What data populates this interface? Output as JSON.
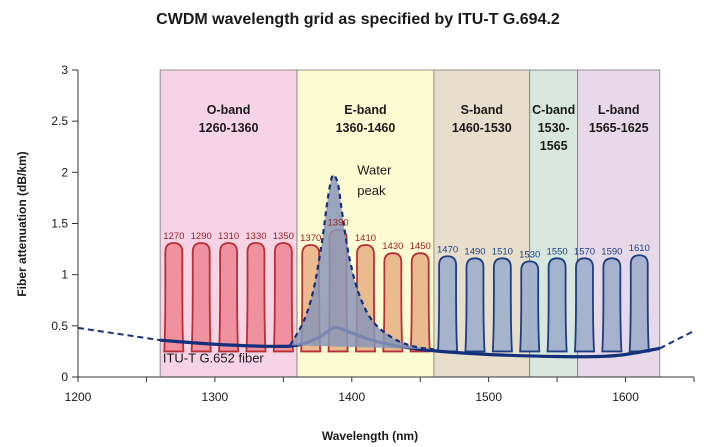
{
  "chart_data": {
    "type": "line",
    "title": "CWDM wavelength grid as specified by ITU-T G.694.2",
    "xlabel": "Wavelength (nm)",
    "ylabel": "Fiber attenuation (dB/km)",
    "xlim": [
      1200,
      1650
    ],
    "ylim": [
      0,
      3
    ],
    "xticks": [
      1200,
      1300,
      1400,
      1500,
      1600
    ],
    "yticks": [
      0,
      0.5,
      1,
      1.5,
      2,
      2.5,
      3
    ],
    "grid": false,
    "bands": [
      {
        "name": "O-band",
        "range_label": "1260-1360",
        "start": 1260,
        "end": 1360,
        "color": "#f7d3e6"
      },
      {
        "name": "E-band",
        "range_label": "1360-1460",
        "start": 1360,
        "end": 1460,
        "color": "#fdfbd2"
      },
      {
        "name": "S-band",
        "range_label": "1460-1530",
        "start": 1460,
        "end": 1530,
        "color": "#e7dfcc"
      },
      {
        "name": "C-band",
        "range_label": "1530-1565",
        "start": 1530,
        "end": 1565,
        "color": "#d7e7dd"
      },
      {
        "name": "L-band",
        "range_label": "1565-1625",
        "start": 1565,
        "end": 1625,
        "color": "#e8d9e8"
      }
    ],
    "channels": [
      {
        "label": "1270",
        "center": 1270,
        "peak": 1.3,
        "group": "O"
      },
      {
        "label": "1290",
        "center": 1290,
        "peak": 1.3,
        "group": "O"
      },
      {
        "label": "1310",
        "center": 1310,
        "peak": 1.3,
        "group": "O"
      },
      {
        "label": "1330",
        "center": 1330,
        "peak": 1.3,
        "group": "O"
      },
      {
        "label": "1350",
        "center": 1350,
        "peak": 1.3,
        "group": "O"
      },
      {
        "label": "1370",
        "center": 1370,
        "peak": 1.28,
        "group": "E"
      },
      {
        "label": "1390",
        "center": 1390,
        "peak": 1.43,
        "group": "E"
      },
      {
        "label": "1410",
        "center": 1410,
        "peak": 1.28,
        "group": "E"
      },
      {
        "label": "1430",
        "center": 1430,
        "peak": 1.2,
        "group": "E"
      },
      {
        "label": "1450",
        "center": 1450,
        "peak": 1.2,
        "group": "E"
      },
      {
        "label": "1470",
        "center": 1470,
        "peak": 1.17,
        "group": "SCL"
      },
      {
        "label": "1490",
        "center": 1490,
        "peak": 1.15,
        "group": "SCL"
      },
      {
        "label": "1510",
        "center": 1510,
        "peak": 1.15,
        "group": "SCL"
      },
      {
        "label": "1530",
        "center": 1530,
        "peak": 1.12,
        "group": "SCL"
      },
      {
        "label": "1550",
        "center": 1550,
        "peak": 1.15,
        "group": "SCL"
      },
      {
        "label": "1570",
        "center": 1570,
        "peak": 1.15,
        "group": "SCL"
      },
      {
        "label": "1590",
        "center": 1590,
        "peak": 1.15,
        "group": "SCL"
      },
      {
        "label": "1610",
        "center": 1610,
        "peak": 1.18,
        "group": "SCL"
      }
    ],
    "channel_styles": {
      "O": {
        "fill": "#ee8b98",
        "stroke": "#b83035",
        "label_color": "#9b1f24"
      },
      "E": {
        "fill": "#e8b589",
        "stroke": "#b83035",
        "label_color": "#9b1f24"
      },
      "SCL": {
        "fill": "#9fafcb",
        "stroke": "#1d3f82",
        "label_color": "#1d3f82"
      }
    },
    "series": [
      {
        "name": "ITU-T G.652 fiber",
        "style": "solid",
        "color": "#15307a",
        "x": [
          1200,
          1260,
          1300,
          1340,
          1360,
          1375,
          1385,
          1390,
          1400,
          1420,
          1450,
          1500,
          1550,
          1580,
          1600,
          1625,
          1650
        ],
        "y": [
          0.48,
          0.36,
          0.32,
          0.3,
          0.31,
          0.38,
          0.47,
          0.48,
          0.43,
          0.34,
          0.27,
          0.22,
          0.2,
          0.2,
          0.22,
          0.28,
          0.45
        ]
      },
      {
        "name": "Water peak",
        "style": "dashed",
        "color": "#15307a",
        "x": [
          1355,
          1365,
          1372,
          1378,
          1382,
          1385,
          1387,
          1390,
          1393,
          1398,
          1405,
          1415,
          1430,
          1445,
          1460
        ],
        "y": [
          0.31,
          0.55,
          0.85,
          1.3,
          1.7,
          1.93,
          1.97,
          1.88,
          1.6,
          1.18,
          0.82,
          0.55,
          0.38,
          0.3,
          0.27
        ]
      }
    ],
    "annotations": [
      {
        "text": "Water",
        "x": 1404,
        "y": 1.98
      },
      {
        "text": "peak",
        "x": 1404,
        "y": 1.78
      },
      {
        "text": "ITU-T G.652 fiber",
        "x": 1262,
        "y": 0.14
      }
    ]
  }
}
